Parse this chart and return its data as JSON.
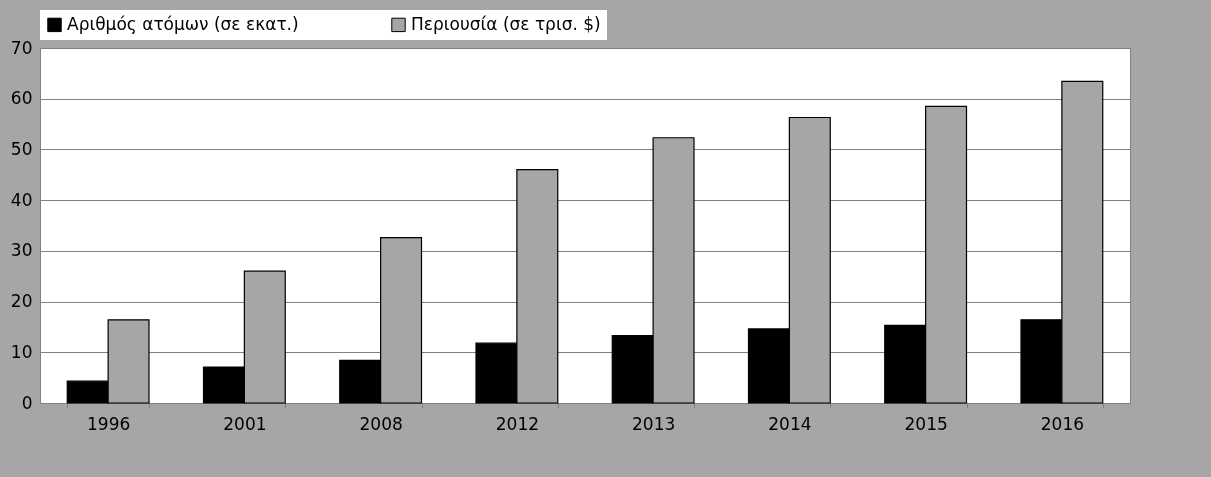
{
  "chart_data": {
    "type": "bar",
    "categories": [
      "1996",
      "2001",
      "2008",
      "2012",
      "2013",
      "2014",
      "2015",
      "2016"
    ],
    "series": [
      {
        "name": "Αριθμός ατόμων (σε εκατ.)",
        "color": "#000000",
        "values": [
          4.3,
          7.1,
          8.4,
          11.8,
          13.3,
          14.6,
          15.3,
          16.4
        ]
      },
      {
        "name": "Περιουσία (σε τρισ. $)",
        "color": "#a6a6a6",
        "values": [
          16.4,
          26.0,
          32.6,
          46.0,
          52.3,
          56.3,
          58.5,
          63.4
        ]
      }
    ],
    "ylim": [
      0,
      70
    ],
    "yticks": [
      0,
      10,
      20,
      30,
      40,
      50,
      60,
      70
    ],
    "grid": "y",
    "legend": "top"
  }
}
